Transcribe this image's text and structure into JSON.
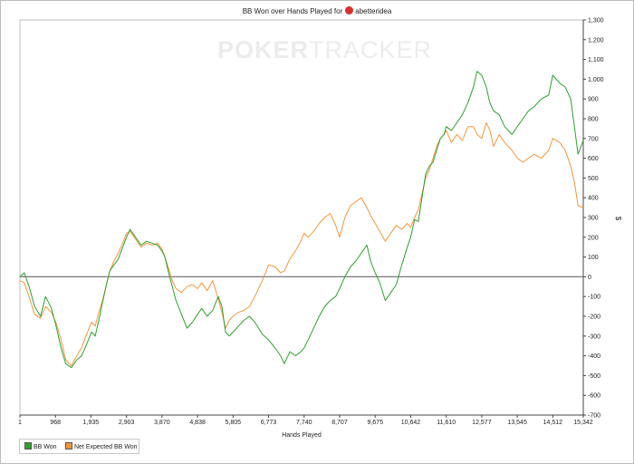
{
  "header": {
    "title": "BB Won over Hands Played for",
    "player": "abetteridea",
    "watermark_a": "POKER",
    "watermark_b": "TRACKER"
  },
  "chart_data": {
    "type": "line",
    "xlabel": "Hands Played",
    "ylabel": "$",
    "xlim": [
      1,
      15342
    ],
    "ylim": [
      -700,
      1300
    ],
    "x_ticks": [
      1,
      968,
      1935,
      2903,
      3870,
      4838,
      5805,
      6773,
      7740,
      8707,
      9675,
      10642,
      11610,
      12577,
      13545,
      14512,
      15342
    ],
    "x_tick_labels": [
      "1",
      "968",
      "1,935",
      "2,903",
      "3,870",
      "4,838",
      "5,805",
      "6,773",
      "7,740",
      "8,707",
      "9,675",
      "10,642",
      "11,610",
      "12,577",
      "13,545",
      "14,512",
      "15,342"
    ],
    "y_ticks": [
      -700,
      -600,
      -500,
      -400,
      -300,
      -200,
      -100,
      0,
      100,
      200,
      300,
      400,
      500,
      600,
      700,
      800,
      900,
      1000,
      1100,
      1200,
      1300
    ],
    "y_tick_labels": [
      "-700",
      "-600",
      "-500",
      "-400",
      "-300",
      "-200",
      "-100",
      "0",
      "100",
      "200",
      "300",
      "400",
      "500",
      "600",
      "700",
      "800",
      "900",
      "1,000",
      "1,100",
      "1,200",
      "1,300"
    ],
    "grid": false,
    "zero_line": true,
    "legend_position": "bottom-left",
    "series": [
      {
        "name": "BB Won",
        "color": "#2ea02e",
        "points": [
          [
            1,
            0
          ],
          [
            120,
            20
          ],
          [
            250,
            -50
          ],
          [
            400,
            -150
          ],
          [
            560,
            -200
          ],
          [
            700,
            -100
          ],
          [
            860,
            -160
          ],
          [
            1000,
            -260
          ],
          [
            1120,
            -360
          ],
          [
            1250,
            -440
          ],
          [
            1400,
            -460
          ],
          [
            1550,
            -420
          ],
          [
            1680,
            -400
          ],
          [
            1820,
            -340
          ],
          [
            1950,
            -280
          ],
          [
            2050,
            -300
          ],
          [
            2150,
            -220
          ],
          [
            2250,
            -130
          ],
          [
            2380,
            -20
          ],
          [
            2450,
            30
          ],
          [
            2560,
            60
          ],
          [
            2680,
            90
          ],
          [
            2800,
            150
          ],
          [
            2903,
            200
          ],
          [
            3000,
            240
          ],
          [
            3150,
            200
          ],
          [
            3300,
            160
          ],
          [
            3450,
            180
          ],
          [
            3600,
            170
          ],
          [
            3750,
            160
          ],
          [
            3870,
            130
          ],
          [
            3950,
            100
          ],
          [
            4050,
            20
          ],
          [
            4150,
            -50
          ],
          [
            4250,
            -120
          ],
          [
            4400,
            -190
          ],
          [
            4550,
            -260
          ],
          [
            4700,
            -230
          ],
          [
            4838,
            -190
          ],
          [
            4950,
            -160
          ],
          [
            5100,
            -200
          ],
          [
            5250,
            -170
          ],
          [
            5400,
            -100
          ],
          [
            5500,
            -150
          ],
          [
            5600,
            -280
          ],
          [
            5700,
            -300
          ],
          [
            5805,
            -280
          ],
          [
            5950,
            -250
          ],
          [
            6100,
            -220
          ],
          [
            6250,
            -200
          ],
          [
            6400,
            -230
          ],
          [
            6600,
            -290
          ],
          [
            6773,
            -320
          ],
          [
            6950,
            -360
          ],
          [
            7100,
            -400
          ],
          [
            7200,
            -440
          ],
          [
            7350,
            -380
          ],
          [
            7500,
            -400
          ],
          [
            7650,
            -380
          ],
          [
            7740,
            -360
          ],
          [
            7850,
            -320
          ],
          [
            8000,
            -260
          ],
          [
            8150,
            -200
          ],
          [
            8300,
            -150
          ],
          [
            8450,
            -120
          ],
          [
            8600,
            -100
          ],
          [
            8707,
            -60
          ],
          [
            8850,
            0
          ],
          [
            9000,
            50
          ],
          [
            9150,
            80
          ],
          [
            9300,
            120
          ],
          [
            9450,
            160
          ],
          [
            9550,
            80
          ],
          [
            9675,
            20
          ],
          [
            9800,
            -30
          ],
          [
            9950,
            -120
          ],
          [
            10100,
            -80
          ],
          [
            10250,
            -40
          ],
          [
            10400,
            60
          ],
          [
            10550,
            150
          ],
          [
            10642,
            200
          ],
          [
            10750,
            290
          ],
          [
            10850,
            280
          ],
          [
            10950,
            400
          ],
          [
            11050,
            520
          ],
          [
            11150,
            560
          ],
          [
            11250,
            580
          ],
          [
            11350,
            640
          ],
          [
            11450,
            700
          ],
          [
            11550,
            720
          ],
          [
            11610,
            760
          ],
          [
            11750,
            740
          ],
          [
            11900,
            780
          ],
          [
            12050,
            820
          ],
          [
            12200,
            880
          ],
          [
            12350,
            960
          ],
          [
            12450,
            1040
          ],
          [
            12577,
            1020
          ],
          [
            12700,
            960
          ],
          [
            12800,
            880
          ],
          [
            12900,
            840
          ],
          [
            13050,
            820
          ],
          [
            13200,
            760
          ],
          [
            13400,
            720
          ],
          [
            13545,
            760
          ],
          [
            13700,
            800
          ],
          [
            13850,
            840
          ],
          [
            14000,
            860
          ],
          [
            14200,
            900
          ],
          [
            14400,
            920
          ],
          [
            14512,
            1020
          ],
          [
            14700,
            980
          ],
          [
            14850,
            960
          ],
          [
            15000,
            900
          ],
          [
            15100,
            760
          ],
          [
            15200,
            620
          ],
          [
            15342,
            690
          ]
        ]
      },
      {
        "name": "Net Expected BB Won",
        "color": "#f5963c",
        "points": [
          [
            1,
            -20
          ],
          [
            120,
            -30
          ],
          [
            250,
            -100
          ],
          [
            400,
            -190
          ],
          [
            560,
            -210
          ],
          [
            700,
            -150
          ],
          [
            860,
            -180
          ],
          [
            1000,
            -240
          ],
          [
            1120,
            -320
          ],
          [
            1250,
            -420
          ],
          [
            1400,
            -450
          ],
          [
            1550,
            -400
          ],
          [
            1680,
            -360
          ],
          [
            1820,
            -290
          ],
          [
            1950,
            -230
          ],
          [
            2050,
            -250
          ],
          [
            2150,
            -180
          ],
          [
            2250,
            -120
          ],
          [
            2380,
            -20
          ],
          [
            2450,
            30
          ],
          [
            2560,
            80
          ],
          [
            2680,
            120
          ],
          [
            2800,
            170
          ],
          [
            2903,
            220
          ],
          [
            3000,
            230
          ],
          [
            3150,
            190
          ],
          [
            3300,
            150
          ],
          [
            3450,
            170
          ],
          [
            3600,
            160
          ],
          [
            3750,
            170
          ],
          [
            3870,
            140
          ],
          [
            3950,
            100
          ],
          [
            4050,
            40
          ],
          [
            4150,
            -20
          ],
          [
            4250,
            -60
          ],
          [
            4400,
            -80
          ],
          [
            4550,
            -50
          ],
          [
            4700,
            -40
          ],
          [
            4838,
            -60
          ],
          [
            4950,
            -30
          ],
          [
            5100,
            -70
          ],
          [
            5250,
            -20
          ],
          [
            5400,
            -110
          ],
          [
            5500,
            -180
          ],
          [
            5600,
            -260
          ],
          [
            5700,
            -220
          ],
          [
            5805,
            -200
          ],
          [
            5950,
            -180
          ],
          [
            6100,
            -170
          ],
          [
            6250,
            -150
          ],
          [
            6400,
            -100
          ],
          [
            6600,
            -20
          ],
          [
            6773,
            60
          ],
          [
            6950,
            50
          ],
          [
            7100,
            20
          ],
          [
            7200,
            30
          ],
          [
            7350,
            90
          ],
          [
            7500,
            130
          ],
          [
            7650,
            180
          ],
          [
            7740,
            220
          ],
          [
            7850,
            200
          ],
          [
            8000,
            230
          ],
          [
            8150,
            270
          ],
          [
            8300,
            300
          ],
          [
            8450,
            320
          ],
          [
            8600,
            260
          ],
          [
            8707,
            200
          ],
          [
            8850,
            300
          ],
          [
            9000,
            360
          ],
          [
            9150,
            380
          ],
          [
            9300,
            400
          ],
          [
            9450,
            350
          ],
          [
            9550,
            310
          ],
          [
            9675,
            270
          ],
          [
            9800,
            230
          ],
          [
            9950,
            180
          ],
          [
            10100,
            220
          ],
          [
            10250,
            260
          ],
          [
            10400,
            240
          ],
          [
            10550,
            270
          ],
          [
            10642,
            250
          ],
          [
            10750,
            300
          ],
          [
            10850,
            340
          ],
          [
            10950,
            420
          ],
          [
            11050,
            500
          ],
          [
            11150,
            540
          ],
          [
            11250,
            600
          ],
          [
            11350,
            660
          ],
          [
            11450,
            700
          ],
          [
            11550,
            720
          ],
          [
            11610,
            740
          ],
          [
            11750,
            680
          ],
          [
            11900,
            720
          ],
          [
            12050,
            690
          ],
          [
            12200,
            760
          ],
          [
            12350,
            760
          ],
          [
            12450,
            720
          ],
          [
            12577,
            700
          ],
          [
            12700,
            780
          ],
          [
            12800,
            740
          ],
          [
            12900,
            660
          ],
          [
            13050,
            720
          ],
          [
            13200,
            680
          ],
          [
            13400,
            640
          ],
          [
            13545,
            600
          ],
          [
            13700,
            580
          ],
          [
            13850,
            600
          ],
          [
            14000,
            620
          ],
          [
            14200,
            600
          ],
          [
            14400,
            640
          ],
          [
            14512,
            700
          ],
          [
            14700,
            680
          ],
          [
            14850,
            640
          ],
          [
            15000,
            560
          ],
          [
            15100,
            480
          ],
          [
            15200,
            360
          ],
          [
            15342,
            350
          ]
        ]
      }
    ]
  }
}
